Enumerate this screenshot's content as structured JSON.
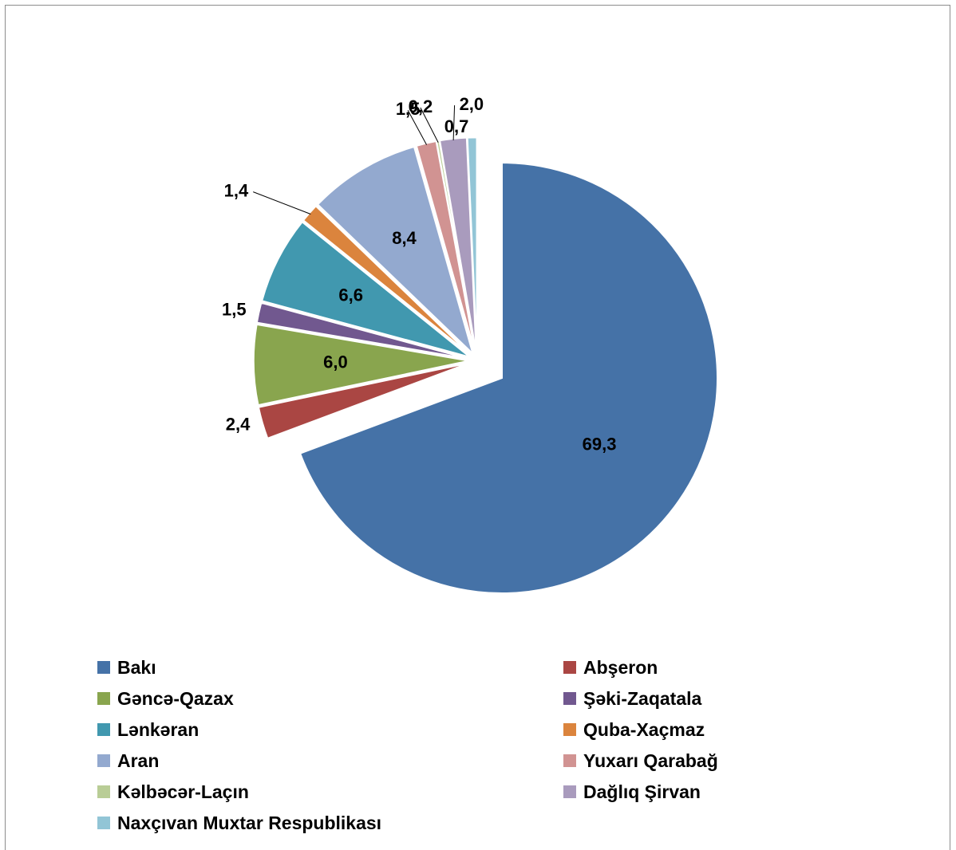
{
  "chart_data": {
    "type": "pie",
    "title": "",
    "slices": [
      {
        "label": "Bakı",
        "value": 69.3,
        "display": "69,3",
        "color": "#4572A7"
      },
      {
        "label": "Abşeron",
        "value": 2.4,
        "display": "2,4",
        "color": "#AA4643"
      },
      {
        "label": "Gəncə-Qazax",
        "value": 6.0,
        "display": "6,0",
        "color": "#89A54E"
      },
      {
        "label": "Şəki-Zaqatala",
        "value": 1.5,
        "display": "1,5",
        "color": "#71588F"
      },
      {
        "label": "Lənkəran",
        "value": 6.6,
        "display": "6,6",
        "color": "#4198AF"
      },
      {
        "label": "Quba-Xaçmaz",
        "value": 1.4,
        "display": "1,4",
        "color": "#DB843D"
      },
      {
        "label": "Aran",
        "value": 8.4,
        "display": "8,4",
        "color": "#93A9CF"
      },
      {
        "label": "Yuxarı Qarabağ",
        "value": 1.5,
        "display": "1,5",
        "color": "#D19392"
      },
      {
        "label": "Kəlbəcər-Laçın",
        "value": 0.2,
        "display": "0,2",
        "color": "#B9CD96"
      },
      {
        "label": "Dağlıq Şirvan",
        "value": 2.0,
        "display": "2,0",
        "color": "#A99BBD"
      },
      {
        "label": "Naxçıvan Muxtar Respublikası",
        "value": 0.7,
        "display": "0,7",
        "color": "#92C5D6"
      }
    ],
    "legend_position": "bottom",
    "exploded": "all slices except Bakı"
  }
}
